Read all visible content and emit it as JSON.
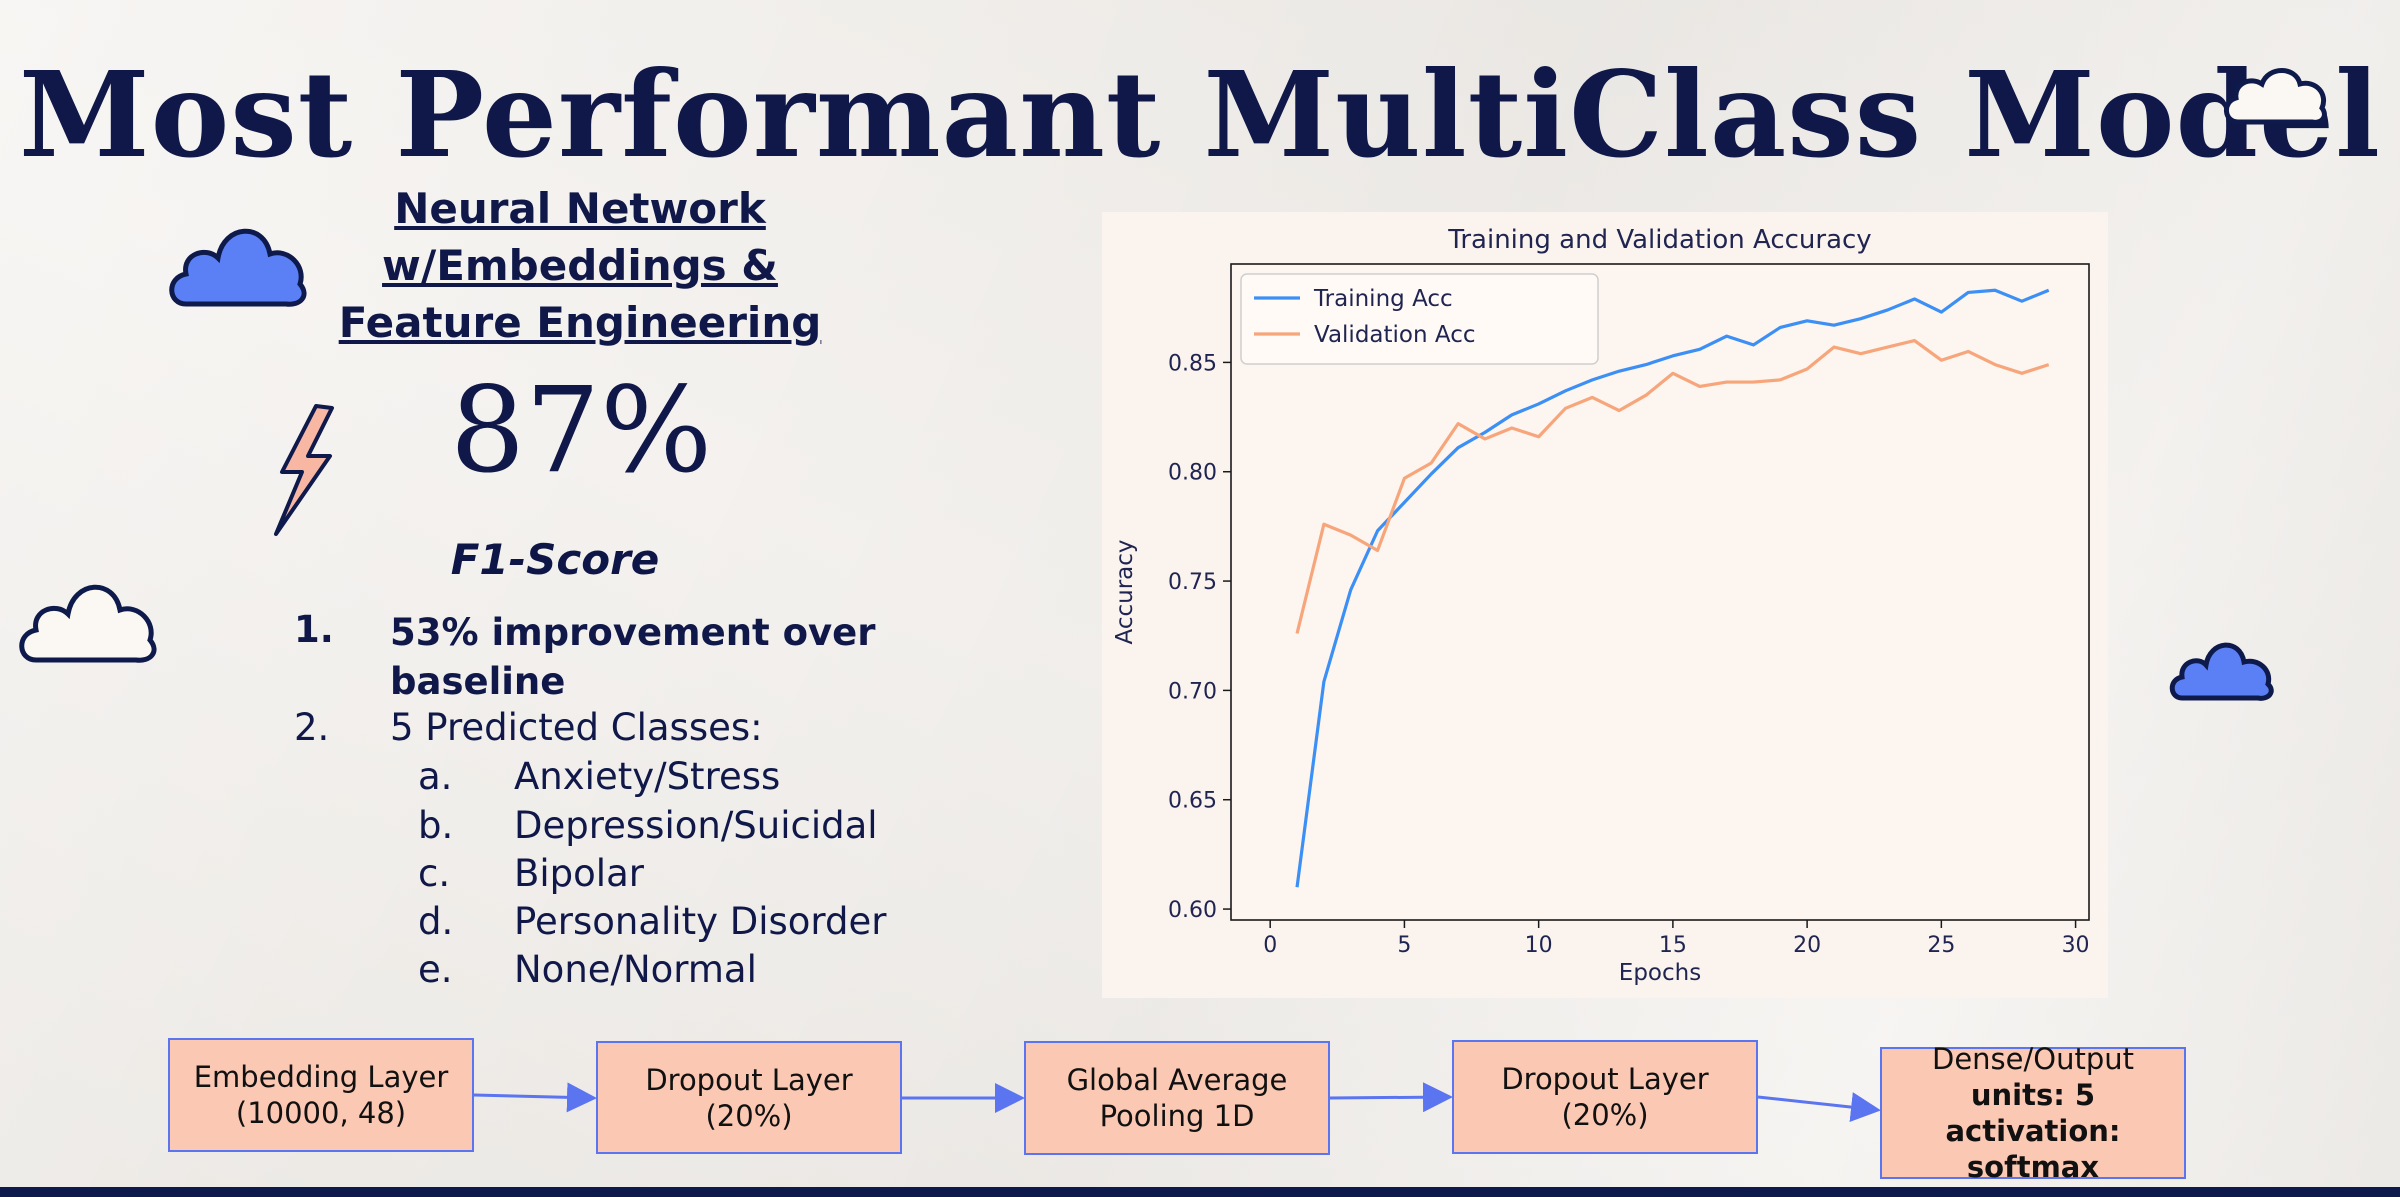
{
  "slide": {
    "title": "Most Performant MultiClass Model",
    "model_name_lines": [
      "Neural Network",
      "w/Embeddings &",
      "Feature Engineering"
    ],
    "score": "87%",
    "score_metric": "F1-Score",
    "list": [
      {
        "marker": "1.",
        "text_lines": [
          "53% improvement over",
          "baseline"
        ],
        "bold": true
      },
      {
        "marker": "2.",
        "text_lines": [
          "5 Predicted Classes:"
        ],
        "bold": false
      }
    ],
    "classes": [
      {
        "marker": "a.",
        "label": "Anxiety/Stress"
      },
      {
        "marker": "b.",
        "label": "Depression/Suicidal"
      },
      {
        "marker": "c.",
        "label": "Bipolar"
      },
      {
        "marker": "d.",
        "label": "Personality Disorder"
      },
      {
        "marker": "e.",
        "label": "None/Normal"
      }
    ],
    "architecture": [
      {
        "line1": "Embedding Layer",
        "line2": "(10000, 48)",
        "line3": ""
      },
      {
        "line1": "Dropout Layer",
        "line2": "(20%)",
        "line3": ""
      },
      {
        "line1": "Global Average",
        "line2": "Pooling 1D",
        "line3": ""
      },
      {
        "line1": "Dropout Layer",
        "line2": "(20%)",
        "line3": ""
      },
      {
        "line1": "Dense/Output",
        "line2": "units: 5",
        "line3": "activation: softmax"
      }
    ],
    "colors": {
      "accent_blue": "#5b80f5",
      "box_fill": "#fbc8b3",
      "navy": "#0f1848"
    }
  },
  "chart_data": {
    "type": "line",
    "title": "Training and Validation Accuracy",
    "xlabel": "Epochs",
    "ylabel": "Accuracy",
    "xlim": [
      0,
      30
    ],
    "ylim": [
      0.595,
      0.895
    ],
    "xticks": [
      0,
      5,
      10,
      15,
      20,
      25,
      30
    ],
    "yticks": [
      0.6,
      0.65,
      0.7,
      0.75,
      0.8,
      0.85
    ],
    "legend_position": "top-left",
    "grid": false,
    "x": [
      1,
      2,
      3,
      4,
      5,
      6,
      7,
      8,
      9,
      10,
      11,
      12,
      13,
      14,
      15,
      16,
      17,
      18,
      19,
      20,
      21,
      22,
      23,
      24,
      25,
      26,
      27,
      28,
      29
    ],
    "series": [
      {
        "name": "Training Acc",
        "color": "#3b8ff5",
        "values": [
          0.61,
          0.704,
          0.746,
          0.773,
          0.786,
          0.799,
          0.811,
          0.818,
          0.826,
          0.831,
          0.837,
          0.842,
          0.846,
          0.849,
          0.853,
          0.856,
          0.862,
          0.858,
          0.866,
          0.869,
          0.867,
          0.87,
          0.874,
          0.879,
          0.873,
          0.882,
          0.883,
          0.878,
          0.883
        ]
      },
      {
        "name": "Validation Acc",
        "color": "#f7a57b",
        "values": [
          0.726,
          0.776,
          0.771,
          0.764,
          0.797,
          0.804,
          0.822,
          0.815,
          0.82,
          0.816,
          0.829,
          0.834,
          0.828,
          0.835,
          0.845,
          0.839,
          0.841,
          0.841,
          0.842,
          0.847,
          0.857,
          0.854,
          0.857,
          0.86,
          0.851,
          0.855,
          0.849,
          0.845,
          0.849
        ]
      }
    ]
  }
}
